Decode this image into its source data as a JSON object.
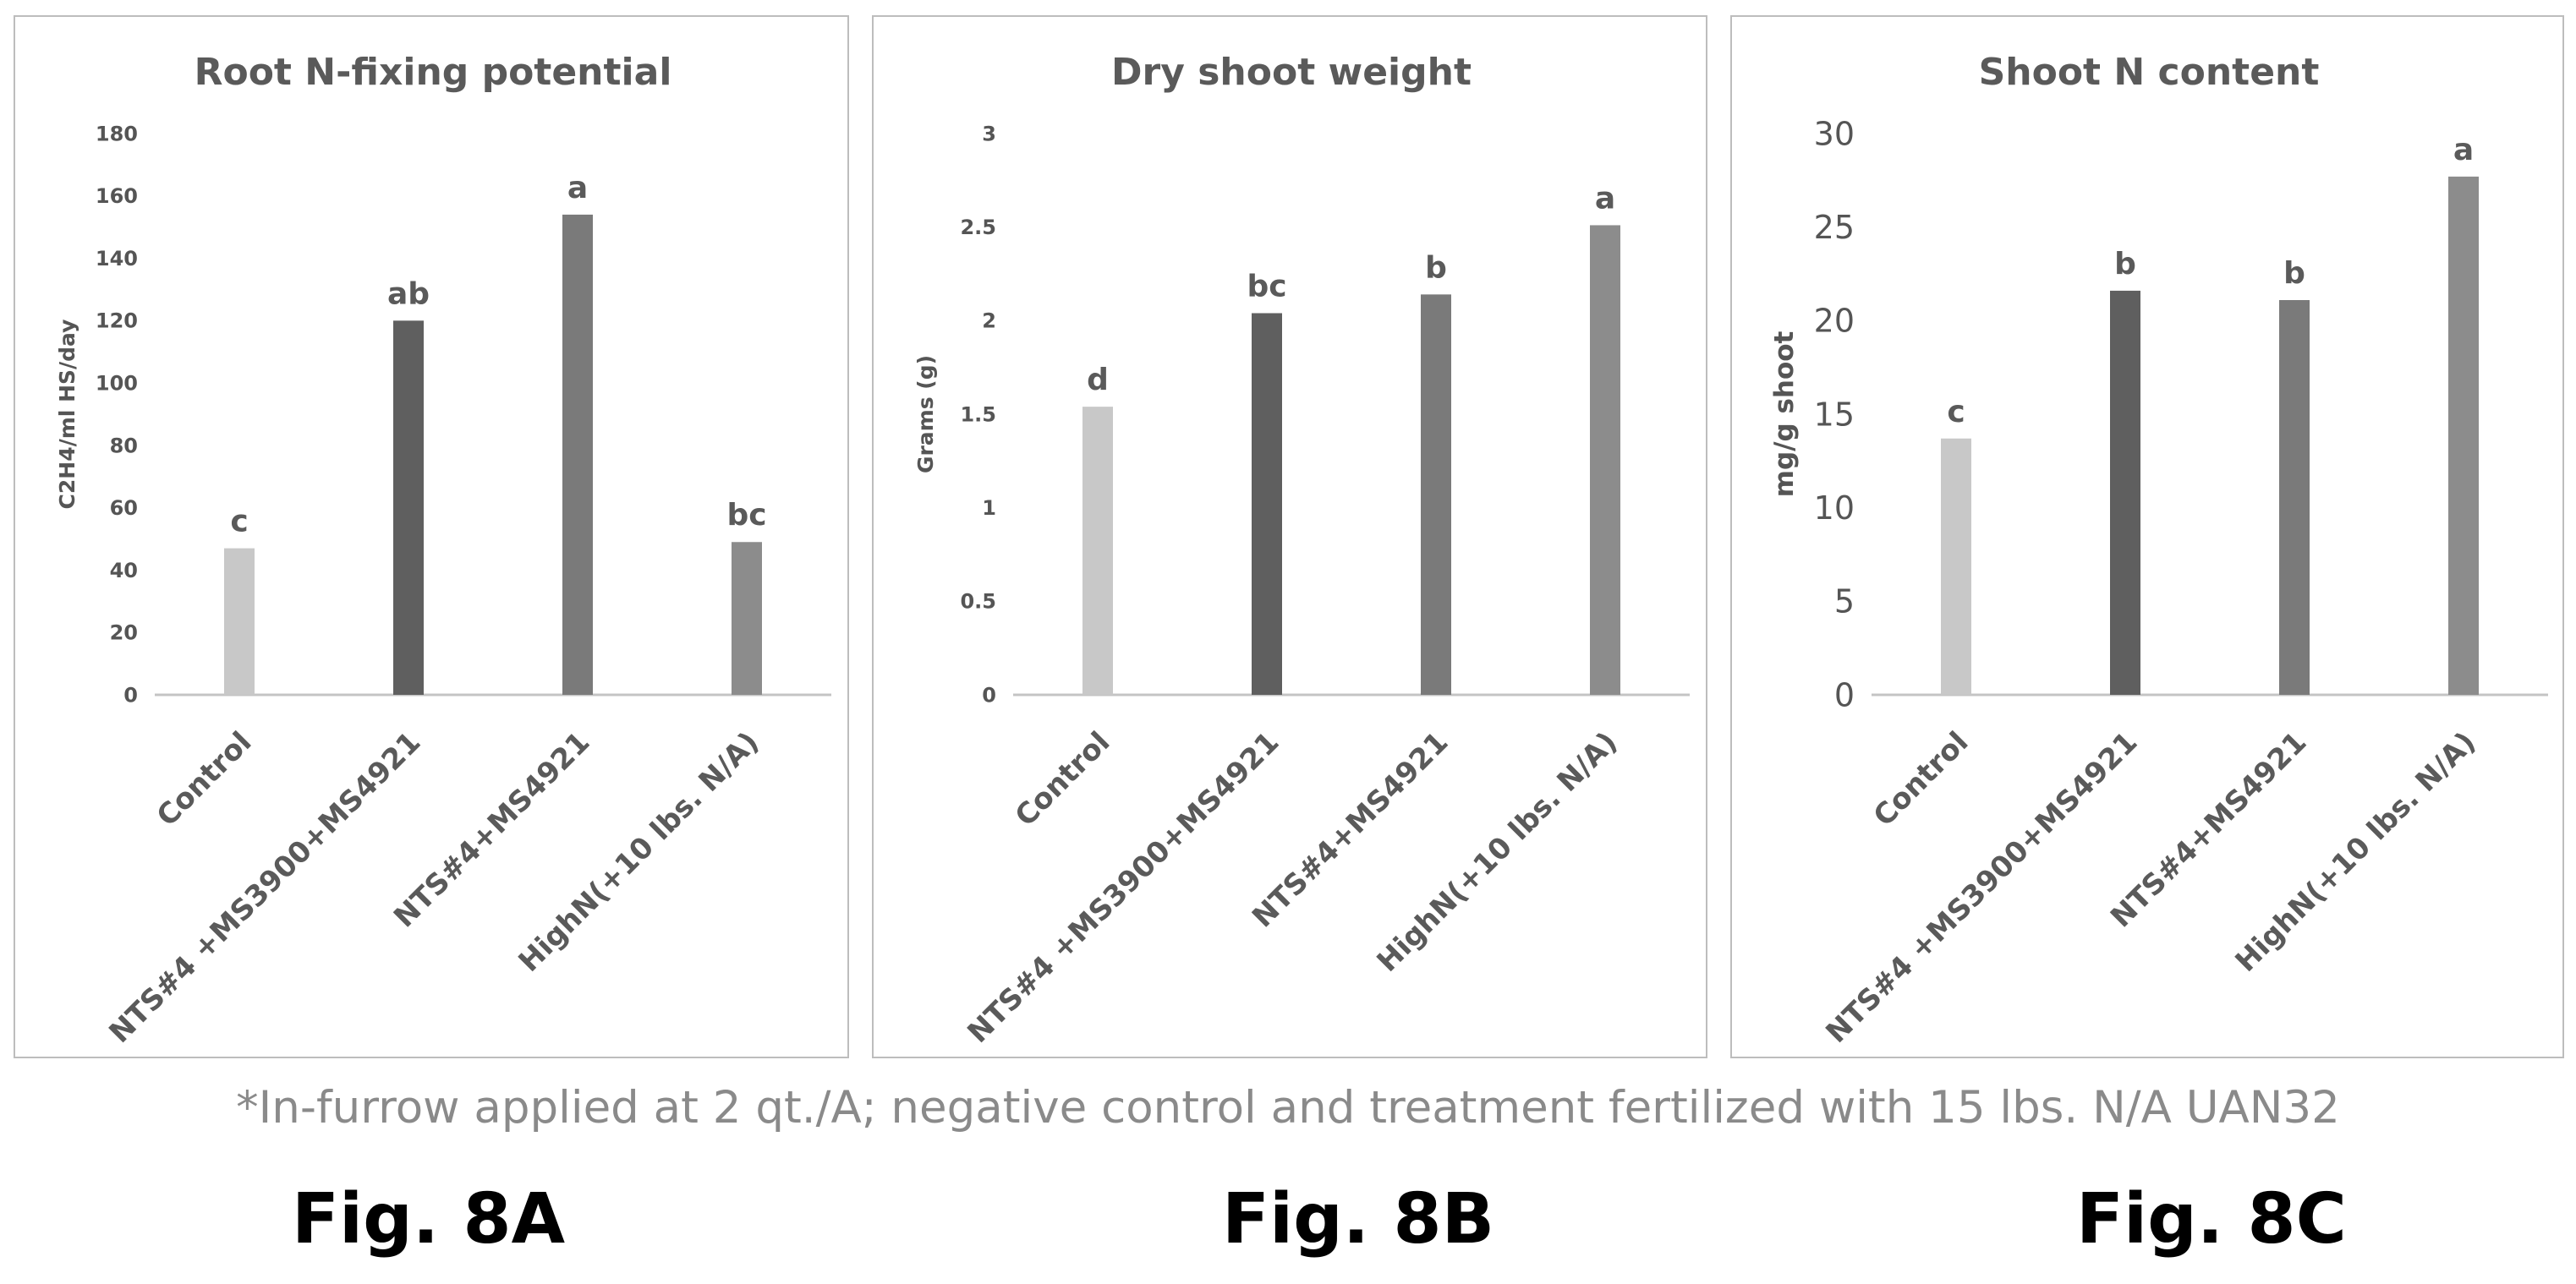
{
  "chart_data": [
    {
      "type": "bar",
      "title": "Root N-fixing potential",
      "ylabel": "C2H4/ml HS/day",
      "xlabel": "",
      "ylim": [
        0,
        180
      ],
      "yticks": [
        "0",
        "20",
        "40",
        "60",
        "80",
        "100",
        "120",
        "140",
        "160",
        "180"
      ],
      "categories": [
        "Control",
        "NTS#4 +MS3900+MS4921",
        "NTS#4+MS4921",
        "HighN(+10 lbs. N/A)"
      ],
      "values": [
        47,
        120,
        154,
        49
      ],
      "annotations": [
        "c",
        "ab",
        "a",
        "bc"
      ],
      "colors": [
        "#c8c8c8",
        "#5f5f5f",
        "#7a7a7a",
        "#8c8c8c"
      ],
      "grid": false
    },
    {
      "type": "bar",
      "title": "Dry shoot weight",
      "ylabel": "Grams (g)",
      "xlabel": "",
      "ylim": [
        0,
        3
      ],
      "yticks": [
        "0",
        "0.5",
        "1",
        "1.5",
        "2",
        "2.5",
        "3"
      ],
      "categories": [
        "Control",
        "NTS#4 +MS3900+MS4921",
        "NTS#4+MS4921",
        "HighN(+10 lbs. N/A)"
      ],
      "values": [
        1.54,
        2.04,
        2.14,
        2.51
      ],
      "annotations": [
        "d",
        "bc",
        "b",
        "a"
      ],
      "colors": [
        "#c8c8c8",
        "#5f5f5f",
        "#7a7a7a",
        "#8c8c8c"
      ],
      "grid": false
    },
    {
      "type": "bar",
      "title": "Shoot N content",
      "ylabel": "mg/g shoot",
      "xlabel": "",
      "ylim": [
        0,
        30
      ],
      "yticks": [
        "0",
        "5",
        "10",
        "15",
        "20",
        "25",
        "30"
      ],
      "categories": [
        "Control",
        "NTS#4 +MS3900+MS4921",
        "NTS#4+MS4921",
        "HighN(+10 lbs. N/A)"
      ],
      "values": [
        13.7,
        21.6,
        21.1,
        27.7
      ],
      "annotations": [
        "c",
        "b",
        "b",
        "a"
      ],
      "colors": [
        "#c8c8c8",
        "#5f5f5f",
        "#7a7a7a",
        "#8c8c8c"
      ],
      "grid": false
    }
  ],
  "footnote": "*In-furrow applied at 2 qt./A; negative control and treatment fertilized with 15 lbs. N/A UAN32",
  "figure_labels": [
    "Fig. 8A",
    "Fig. 8B",
    "Fig. 8C"
  ]
}
